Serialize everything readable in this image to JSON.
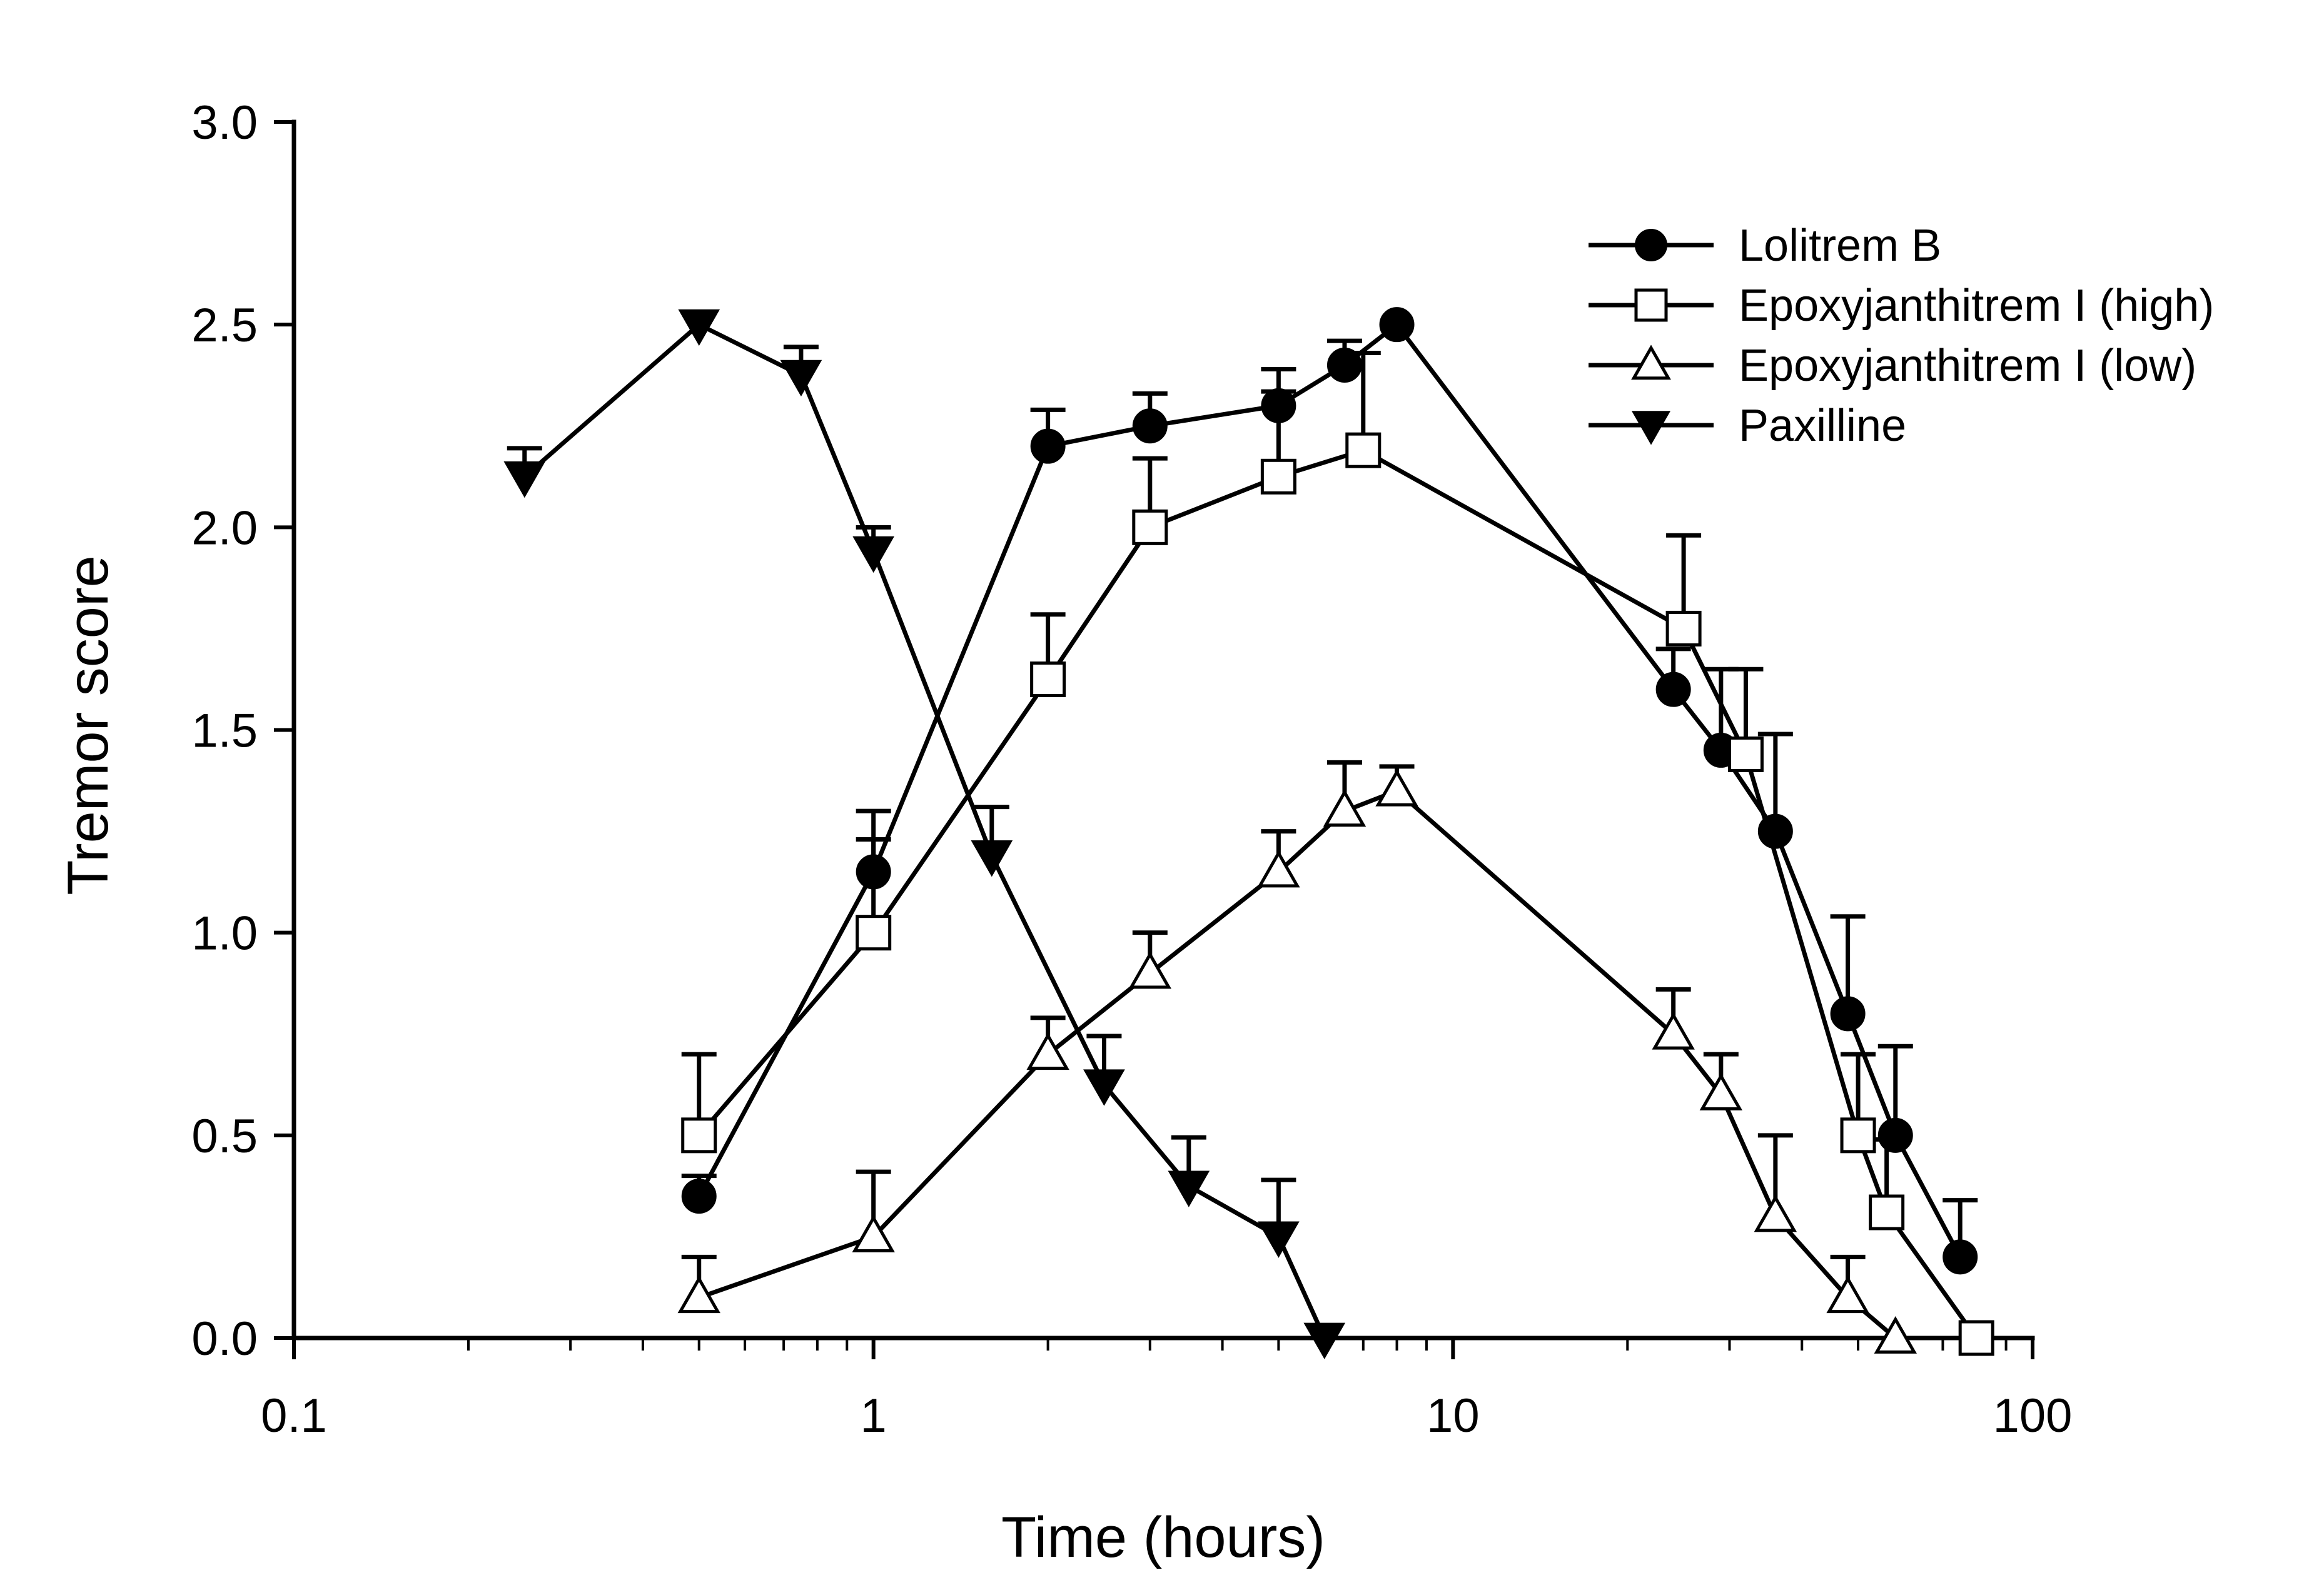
{
  "chart_data": {
    "type": "line",
    "title": "",
    "xlabel": "Time (hours)",
    "ylabel": "Tremor score",
    "xscale": "log",
    "xlim": [
      0.1,
      100
    ],
    "ylim": [
      0.0,
      3.0
    ],
    "x_ticks": [
      0.1,
      1,
      10,
      100
    ],
    "x_tick_labels": [
      "0.1",
      "1",
      "10",
      "100"
    ],
    "y_ticks": [
      0.0,
      0.5,
      1.0,
      1.5,
      2.0,
      2.5,
      3.0
    ],
    "y_tick_labels": [
      "0.0",
      "0.5",
      "1.0",
      "1.5",
      "2.0",
      "2.5",
      "3.0"
    ],
    "grid": false,
    "legend_position": "top-right",
    "series": [
      {
        "name": "Lolitrem B",
        "marker": "circle-filled",
        "x": [
          0.5,
          1,
          2,
          3,
          5,
          6.5,
          8,
          24,
          29,
          36,
          48,
          58,
          75
        ],
        "y": [
          0.35,
          1.15,
          2.2,
          2.25,
          2.3,
          2.4,
          2.5,
          1.6,
          1.45,
          1.25,
          0.8,
          0.5,
          0.2
        ],
        "err": [
          0.05,
          0.15,
          0.09,
          0.08,
          0.09,
          0.06,
          0,
          0.1,
          0.2,
          0.24,
          0.24,
          0.22,
          0.14
        ]
      },
      {
        "name": "Epoxyjanthitrem I (high)",
        "marker": "square-open",
        "x": [
          0.5,
          1,
          2,
          3,
          5,
          7,
          25,
          32,
          50,
          56,
          80
        ],
        "y": [
          0.5,
          1.0,
          1.625,
          2.0,
          2.125,
          2.19,
          1.75,
          1.44,
          0.5,
          0.31,
          0.0
        ],
        "err": [
          0.2,
          0.23,
          0.16,
          0.17,
          0.21,
          0.24,
          0.23,
          0.21,
          0.2,
          0.18,
          0
        ]
      },
      {
        "name": "Epoxyjanthitrem I (low)",
        "marker": "triangle-up-open",
        "x": [
          0.5,
          1,
          2,
          3,
          5,
          6.5,
          8,
          24,
          29,
          36,
          48,
          58
        ],
        "y": [
          0.1,
          0.25,
          0.7,
          0.9,
          1.15,
          1.3,
          1.35,
          0.75,
          0.6,
          0.3,
          0.1,
          0.0
        ],
        "err": [
          0.1,
          0.16,
          0.09,
          0.1,
          0.1,
          0.12,
          0.06,
          0.11,
          0.1,
          0.2,
          0.1,
          0
        ]
      },
      {
        "name": "Paxilline",
        "marker": "triangle-down-filled",
        "x": [
          0.25,
          0.5,
          0.75,
          1,
          1.6,
          2.5,
          3.5,
          5,
          6
        ],
        "y": [
          2.125,
          2.5,
          2.375,
          1.94,
          1.19,
          0.625,
          0.375,
          0.25,
          0.0
        ],
        "err": [
          0.07,
          0,
          0.07,
          0.06,
          0.12,
          0.12,
          0.12,
          0.14,
          0
        ]
      }
    ]
  }
}
